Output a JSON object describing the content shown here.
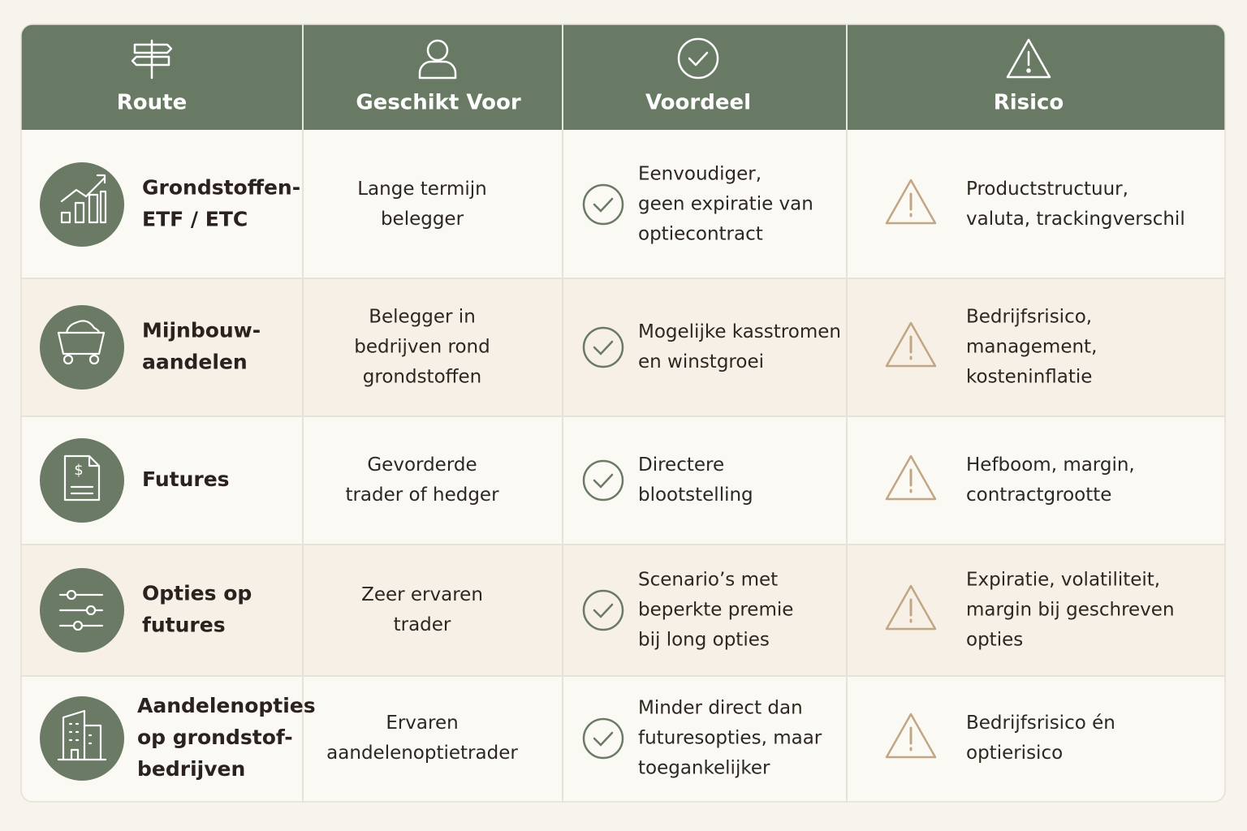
{
  "table": {
    "headers": [
      "Route",
      "Geschikt Voor",
      "Voordeel",
      "Risico"
    ],
    "rows": [
      {
        "route": [
          "Grondstoffen-",
          "ETF / ETC"
        ],
        "suitable": [
          "Lange termijn",
          "belegger"
        ],
        "advantage": [
          "Eenvoudiger,",
          "geen expiratie van",
          "optiecontract"
        ],
        "risk": [
          "Productstructuur,",
          "valuta, trackingverschil"
        ]
      },
      {
        "route": [
          "Mijnbouw-",
          "aandelen"
        ],
        "suitable": [
          "Belegger in",
          "bedrijven rond",
          "grondstoffen"
        ],
        "advantage": [
          "Mogelijke kasstromen",
          "en winstgroei"
        ],
        "risk": [
          "Bedrijfsrisico,",
          "management,",
          "kosteninflatie"
        ]
      },
      {
        "route": [
          "Futures"
        ],
        "suitable": [
          "Gevorderde",
          "trader of hedger"
        ],
        "advantage": [
          "Directere",
          "blootstelling"
        ],
        "risk": [
          "Hefboom, margin,",
          "contractgrootte"
        ]
      },
      {
        "route": [
          "Opties op",
          "futures"
        ],
        "suitable": [
          "Zeer ervaren",
          "trader"
        ],
        "advantage": [
          "Scenario’s met",
          "beperkte premie",
          "bij long opties"
        ],
        "risk": [
          "Expiratie, volatiliteit,",
          "margin bij geschreven",
          "opties"
        ]
      },
      {
        "route": [
          "Aandelenopties",
          "op grondstof-",
          "bedrijven"
        ],
        "suitable": [
          "Ervaren",
          "aandelenoptietrader"
        ],
        "advantage": [
          "Minder direct dan",
          "futuresopties, maar",
          "toegankelijker"
        ],
        "risk": [
          "Bedrijfsrisico én",
          "optierisico"
        ]
      }
    ]
  }
}
